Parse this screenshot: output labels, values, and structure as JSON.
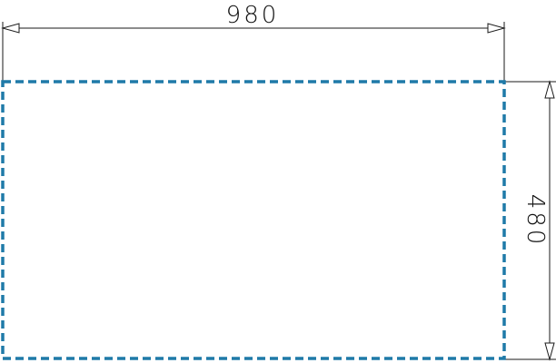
{
  "dimensions": {
    "width_label": "980",
    "height_label": "480"
  },
  "colors": {
    "outline": "#1f7aa8",
    "line": "#1a1a1a",
    "text": "#111111"
  }
}
